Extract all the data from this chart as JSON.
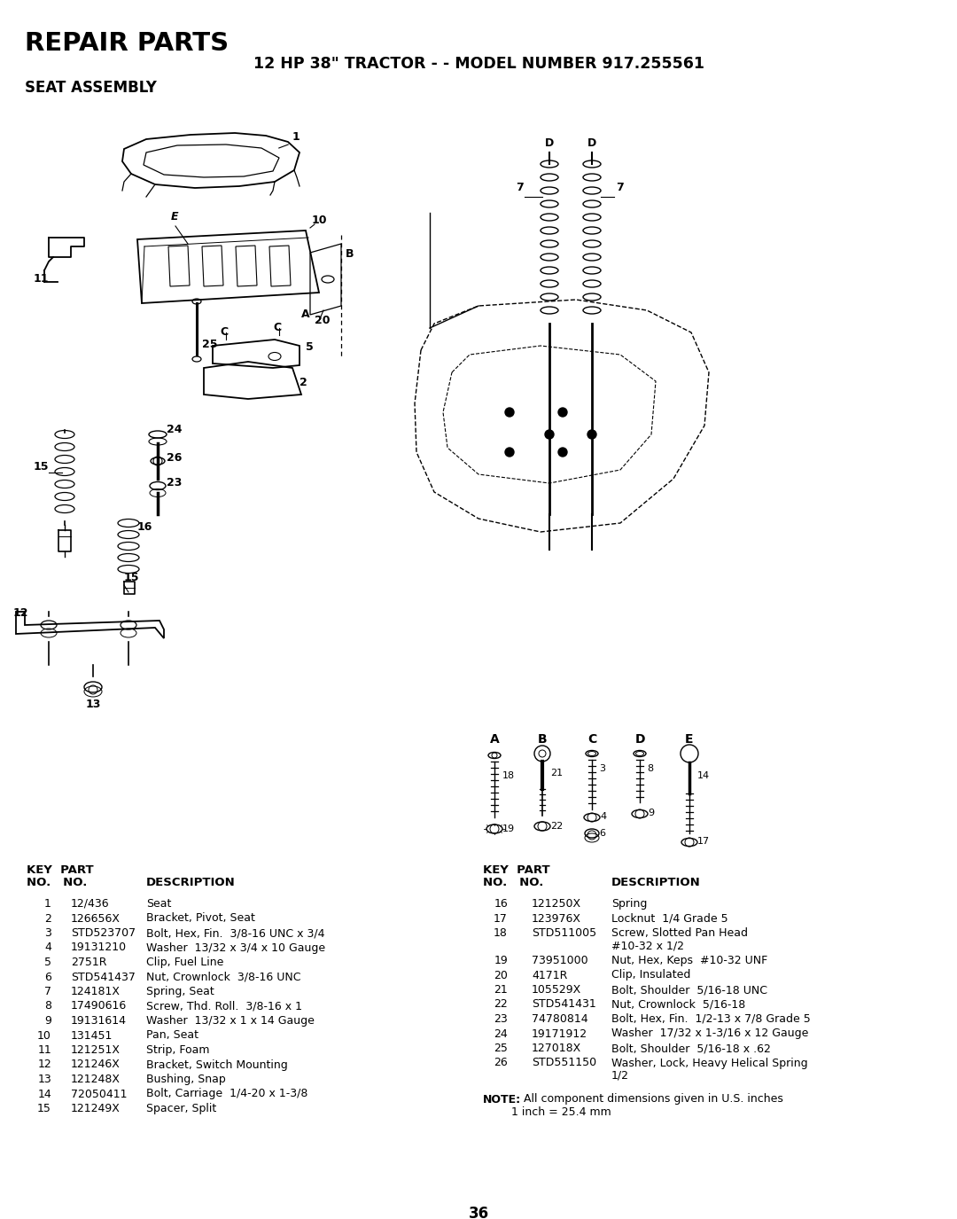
{
  "title_main": "REPAIR PARTS",
  "title_sub": "12 HP 38\" TRACTOR - - MODEL NUMBER 917.255561",
  "section_title": "SEAT ASSEMBLY",
  "page_number": "36",
  "background_color": "#ffffff",
  "text_color": "#000000",
  "parts_left": [
    [
      1,
      "12/436",
      "Seat"
    ],
    [
      2,
      "126656X",
      "Bracket, Pivot, Seat"
    ],
    [
      3,
      "STD523707",
      "Bolt, Hex, Fin.  3/8-16 UNC x 3/4"
    ],
    [
      4,
      "19131210",
      "Washer  13/32 x 3/4 x 10 Gauge"
    ],
    [
      5,
      "2751R",
      "Clip, Fuel Line"
    ],
    [
      6,
      "STD541437",
      "Nut, Crownlock  3/8-16 UNC"
    ],
    [
      7,
      "124181X",
      "Spring, Seat"
    ],
    [
      8,
      "17490616",
      "Screw, Thd. Roll.  3/8-16 x 1"
    ],
    [
      9,
      "19131614",
      "Washer  13/32 x 1 x 14 Gauge"
    ],
    [
      10,
      "131451",
      "Pan, Seat"
    ],
    [
      11,
      "121251X",
      "Strip, Foam"
    ],
    [
      12,
      "121246X",
      "Bracket, Switch Mounting"
    ],
    [
      13,
      "121248X",
      "Bushing, Snap"
    ],
    [
      14,
      "72050411",
      "Bolt, Carriage  1/4-20 x 1-3/8"
    ],
    [
      15,
      "121249X",
      "Spacer, Split"
    ]
  ],
  "parts_right": [
    [
      16,
      "121250X",
      "Spring"
    ],
    [
      17,
      "123976X",
      "Locknut  1/4 Grade 5"
    ],
    [
      18,
      "STD511005",
      "Screw, Slotted Pan Head\n#10-32 x 1/2"
    ],
    [
      19,
      "73951000",
      "Nut, Hex, Keps  #10-32 UNF"
    ],
    [
      20,
      "4171R",
      "Clip, Insulated"
    ],
    [
      21,
      "105529X",
      "Bolt, Shoulder  5/16-18 UNC"
    ],
    [
      22,
      "STD541431",
      "Nut, Crownlock  5/16-18"
    ],
    [
      23,
      "74780814",
      "Bolt, Hex, Fin.  1/2-13 x 7/8 Grade 5"
    ],
    [
      24,
      "19171912",
      "Washer  17/32 x 1-3/16 x 12 Gauge"
    ],
    [
      25,
      "127018X",
      "Bolt, Shoulder  5/16-18 x .62"
    ],
    [
      26,
      "STD551150",
      "Washer, Lock, Heavy Helical Spring\n1/2"
    ]
  ],
  "note_bold": "NOTE:",
  "note_rest": " All component dimensions given in U.S. inches\n        1 inch = 25.4 mm"
}
